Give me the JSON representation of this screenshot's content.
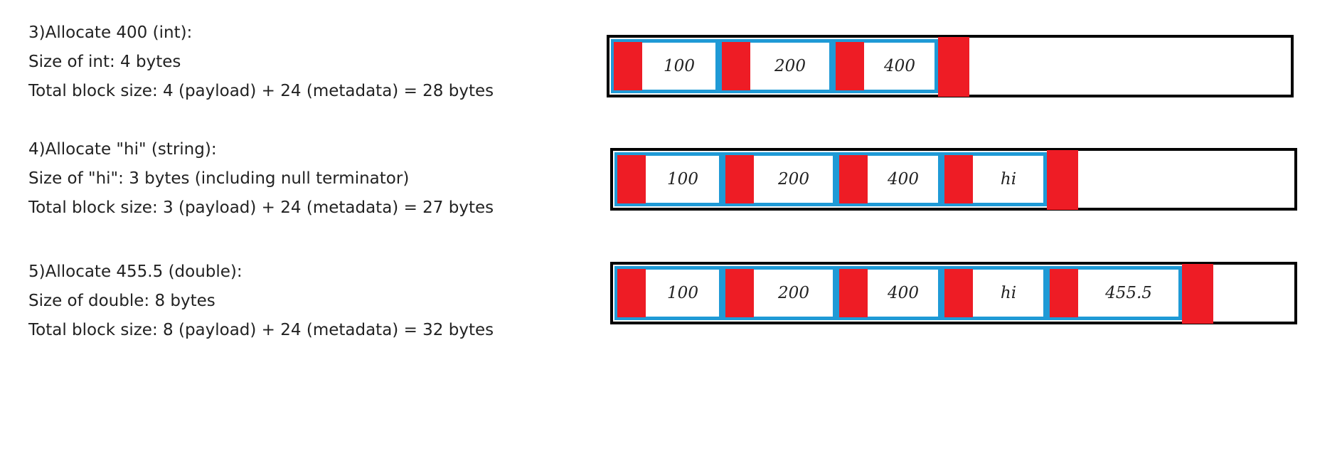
{
  "steps": [
    {
      "heading": "3)Allocate 400 (int):",
      "size_line": "Size of int: 4 bytes",
      "total_line": "Total block size: 4 (payload) + 24 (metadata) = 28 bytes",
      "blocks": [
        "100",
        "200",
        "400"
      ]
    },
    {
      "heading": "4)Allocate \"hi\" (string):",
      "size_line": "Size of \"hi\": 3 bytes (including null terminator)",
      "total_line": "Total block size: 3 (payload) + 24 (metadata) = 27 bytes",
      "blocks": [
        "100",
        "200",
        "400",
        "hi"
      ]
    },
    {
      "heading": "5)Allocate 455.5 (double):",
      "size_line": "Size of double: 8 bytes",
      "total_line": "Total block size: 8 (payload) + 24 (metadata) = 32 bytes",
      "blocks": [
        "100",
        "200",
        "400",
        "hi",
        "455.5"
      ]
    }
  ],
  "colors": {
    "metadata": "#ee1c25",
    "block_border": "#1f9ad6",
    "outline": "#000000"
  }
}
